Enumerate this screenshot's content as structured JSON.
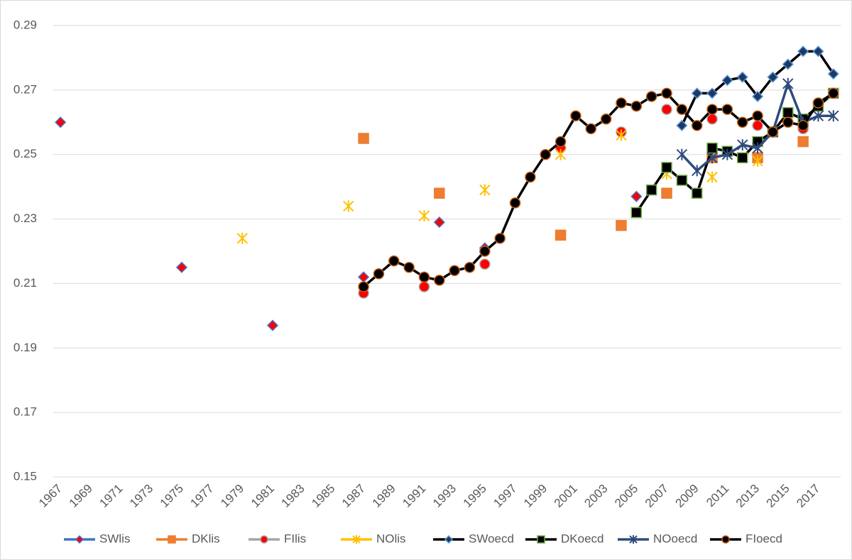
{
  "chart_data": {
    "type": "line",
    "categories": [
      "1967",
      null,
      "1969",
      null,
      "1971",
      null,
      "1973",
      null,
      "1975",
      null,
      "1977",
      null,
      "1979",
      null,
      "1981",
      null,
      "1983",
      null,
      "1985",
      null,
      "1987",
      null,
      "1989",
      null,
      "1991",
      null,
      "1993",
      null,
      "1995",
      null,
      "1997",
      null,
      "1999",
      null,
      "2001",
      null,
      "2003",
      null,
      "2005",
      null,
      "2007",
      null,
      "2009",
      null,
      "2011",
      null,
      "2013",
      null,
      "2015",
      null,
      "2017",
      null
    ],
    "ylim": [
      0.15,
      0.29
    ],
    "yticks": [
      0.15,
      0.17,
      0.19,
      0.21,
      0.23,
      0.25,
      0.27,
      0.29
    ],
    "grid": true,
    "legend": "bottom",
    "series": [
      {
        "name": "SWlis",
        "color": "#4472c4",
        "marker": "diamond",
        "marker_fill": "#ff0000",
        "marker_stroke": "#4472c4",
        "values": [
          0.26,
          null,
          null,
          null,
          null,
          null,
          null,
          null,
          0.215,
          null,
          null,
          null,
          null,
          null,
          0.197,
          null,
          null,
          null,
          null,
          null,
          0.212,
          null,
          null,
          null,
          null,
          0.229,
          null,
          null,
          0.221,
          null,
          null,
          null,
          null,
          0.252,
          null,
          null,
          null,
          null,
          0.237,
          null,
          null,
          null,
          null,
          null,
          null,
          null,
          null,
          null,
          null,
          null,
          null,
          null
        ]
      },
      {
        "name": "DKlis",
        "color": "#ed7d31",
        "marker": "square",
        "marker_fill": "#ed7d31",
        "marker_stroke": "#ed7d31",
        "values": [
          null,
          null,
          null,
          null,
          null,
          null,
          null,
          null,
          null,
          null,
          null,
          null,
          null,
          null,
          null,
          null,
          null,
          null,
          null,
          null,
          0.255,
          null,
          null,
          null,
          null,
          0.238,
          null,
          null,
          null,
          null,
          null,
          null,
          null,
          0.225,
          null,
          null,
          null,
          0.228,
          null,
          null,
          0.238,
          null,
          null,
          0.249,
          null,
          null,
          0.249,
          null,
          null,
          0.254,
          null,
          null
        ]
      },
      {
        "name": "FIlis",
        "color": "#a5a5a5",
        "marker": "circle",
        "marker_fill": "#ff0000",
        "marker_stroke": "#a5a5a5",
        "values": [
          null,
          null,
          null,
          null,
          null,
          null,
          null,
          null,
          null,
          null,
          null,
          null,
          null,
          null,
          null,
          null,
          null,
          null,
          null,
          null,
          0.207,
          null,
          null,
          null,
          0.209,
          null,
          null,
          null,
          0.216,
          null,
          null,
          null,
          null,
          0.252,
          null,
          null,
          null,
          0.257,
          null,
          null,
          0.264,
          null,
          null,
          0.261,
          null,
          null,
          0.259,
          null,
          null,
          0.258,
          null,
          null
        ]
      },
      {
        "name": "NOlis",
        "color": "#ffc000",
        "marker": "star",
        "marker_fill": "#ffc000",
        "marker_stroke": "#ffc000",
        "values": [
          null,
          null,
          null,
          null,
          null,
          null,
          null,
          null,
          null,
          null,
          null,
          null,
          0.224,
          null,
          null,
          null,
          null,
          null,
          null,
          0.234,
          null,
          null,
          null,
          null,
          0.231,
          null,
          null,
          null,
          0.239,
          null,
          null,
          null,
          null,
          0.25,
          null,
          null,
          null,
          0.256,
          null,
          null,
          0.244,
          null,
          null,
          0.243,
          null,
          null,
          0.248,
          null,
          null,
          null,
          null,
          null
        ]
      },
      {
        "name": "SWoecd",
        "color": "#000000",
        "marker": "diamond",
        "marker_fill": "#1f3864",
        "marker_stroke": "#5b9bd5",
        "values": [
          null,
          null,
          null,
          null,
          null,
          null,
          null,
          null,
          null,
          null,
          null,
          null,
          null,
          null,
          null,
          null,
          null,
          null,
          null,
          null,
          null,
          null,
          null,
          null,
          null,
          null,
          null,
          null,
          null,
          null,
          null,
          null,
          null,
          null,
          null,
          null,
          null,
          null,
          null,
          null,
          null,
          0.259,
          0.269,
          0.269,
          0.273,
          0.274,
          0.268,
          0.274,
          0.278,
          0.282,
          0.282,
          0.275
        ]
      },
      {
        "name": "DKoecd",
        "color": "#000000",
        "marker": "square",
        "marker_fill": "#000000",
        "marker_stroke": "#70ad47",
        "values": [
          null,
          null,
          null,
          null,
          null,
          null,
          null,
          null,
          null,
          null,
          null,
          null,
          null,
          null,
          null,
          null,
          null,
          null,
          null,
          null,
          null,
          null,
          null,
          null,
          null,
          null,
          null,
          null,
          null,
          null,
          null,
          null,
          null,
          null,
          null,
          null,
          null,
          null,
          0.232,
          0.239,
          0.246,
          0.242,
          0.238,
          0.252,
          0.251,
          0.249,
          0.254,
          0.257,
          0.263,
          0.261,
          0.265,
          0.269
        ]
      },
      {
        "name": "NOoecd",
        "color": "#2f4b7c",
        "marker": "star",
        "marker_fill": "#2f4b7c",
        "marker_stroke": "#2f4b7c",
        "values": [
          null,
          null,
          null,
          null,
          null,
          null,
          null,
          null,
          null,
          null,
          null,
          null,
          null,
          null,
          null,
          null,
          null,
          null,
          null,
          null,
          null,
          null,
          null,
          null,
          null,
          null,
          null,
          null,
          null,
          null,
          null,
          null,
          null,
          null,
          null,
          null,
          null,
          null,
          null,
          null,
          null,
          0.25,
          0.245,
          0.249,
          0.25,
          0.253,
          0.252,
          0.257,
          0.272,
          0.26,
          0.262,
          0.262
        ]
      },
      {
        "name": "FIoecd",
        "color": "#000000",
        "marker": "circle",
        "marker_fill": "#000000",
        "marker_stroke": "#c55a11",
        "values": [
          null,
          null,
          null,
          null,
          null,
          null,
          null,
          null,
          null,
          null,
          null,
          null,
          null,
          null,
          null,
          null,
          null,
          null,
          null,
          null,
          0.209,
          0.213,
          0.217,
          0.215,
          0.212,
          0.211,
          0.214,
          0.215,
          0.22,
          0.224,
          0.235,
          0.243,
          0.25,
          0.254,
          0.262,
          0.258,
          0.261,
          0.266,
          0.265,
          0.268,
          0.269,
          0.264,
          0.259,
          0.264,
          0.264,
          0.26,
          0.262,
          0.257,
          0.26,
          0.259,
          0.266,
          0.269
        ]
      }
    ]
  }
}
